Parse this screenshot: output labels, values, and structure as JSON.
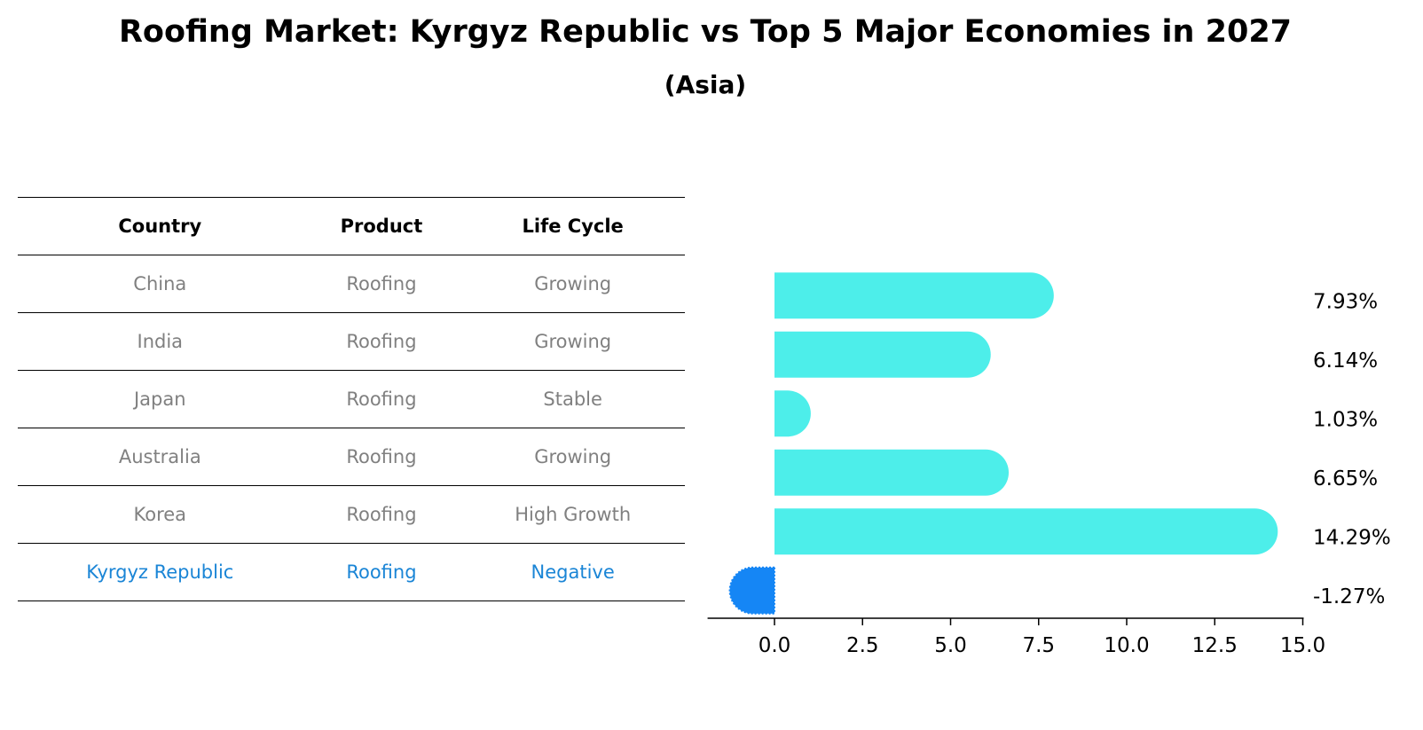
{
  "title": "Roofing Market: Kyrgyz Republic vs Top 5 Major Economies in 2027",
  "subtitle": "(Asia)",
  "table": {
    "headers": [
      "Country",
      "Product",
      "Life Cycle"
    ],
    "rows": [
      {
        "country": "China",
        "product": "Roofing",
        "life_cycle": "Growing"
      },
      {
        "country": "India",
        "product": "Roofing",
        "life_cycle": "Growing"
      },
      {
        "country": "Japan",
        "product": "Roofing",
        "life_cycle": "Stable"
      },
      {
        "country": "Australia",
        "product": "Roofing",
        "life_cycle": "Growing"
      },
      {
        "country": "Korea",
        "product": "Roofing",
        "life_cycle": "High Growth"
      },
      {
        "country": "Kyrgyz Republic",
        "product": "Roofing",
        "life_cycle": "Negative"
      }
    ]
  },
  "colors": {
    "bar": "#4deeea",
    "highlight_bar": "#1586f5",
    "highlight_text": "#1a85d6",
    "muted_text": "#808080"
  },
  "chart_data": {
    "type": "bar",
    "orientation": "horizontal",
    "categories": [
      "China",
      "India",
      "Japan",
      "Australia",
      "Korea",
      "Kyrgyz Republic"
    ],
    "values": [
      7.93,
      6.14,
      1.03,
      6.65,
      14.29,
      -1.27
    ],
    "value_labels": [
      "7.93%",
      "6.14%",
      "1.03%",
      "6.65%",
      "14.29%",
      "-1.27%"
    ],
    "highlight": "Kyrgyz Republic",
    "xlim": [
      -1.9,
      15.0
    ],
    "xticks": [
      0.0,
      2.5,
      5.0,
      7.5,
      10.0,
      12.5,
      15.0
    ],
    "xtick_labels": [
      "0.0",
      "2.5",
      "5.0",
      "7.5",
      "10.0",
      "12.5",
      "15.0"
    ]
  }
}
